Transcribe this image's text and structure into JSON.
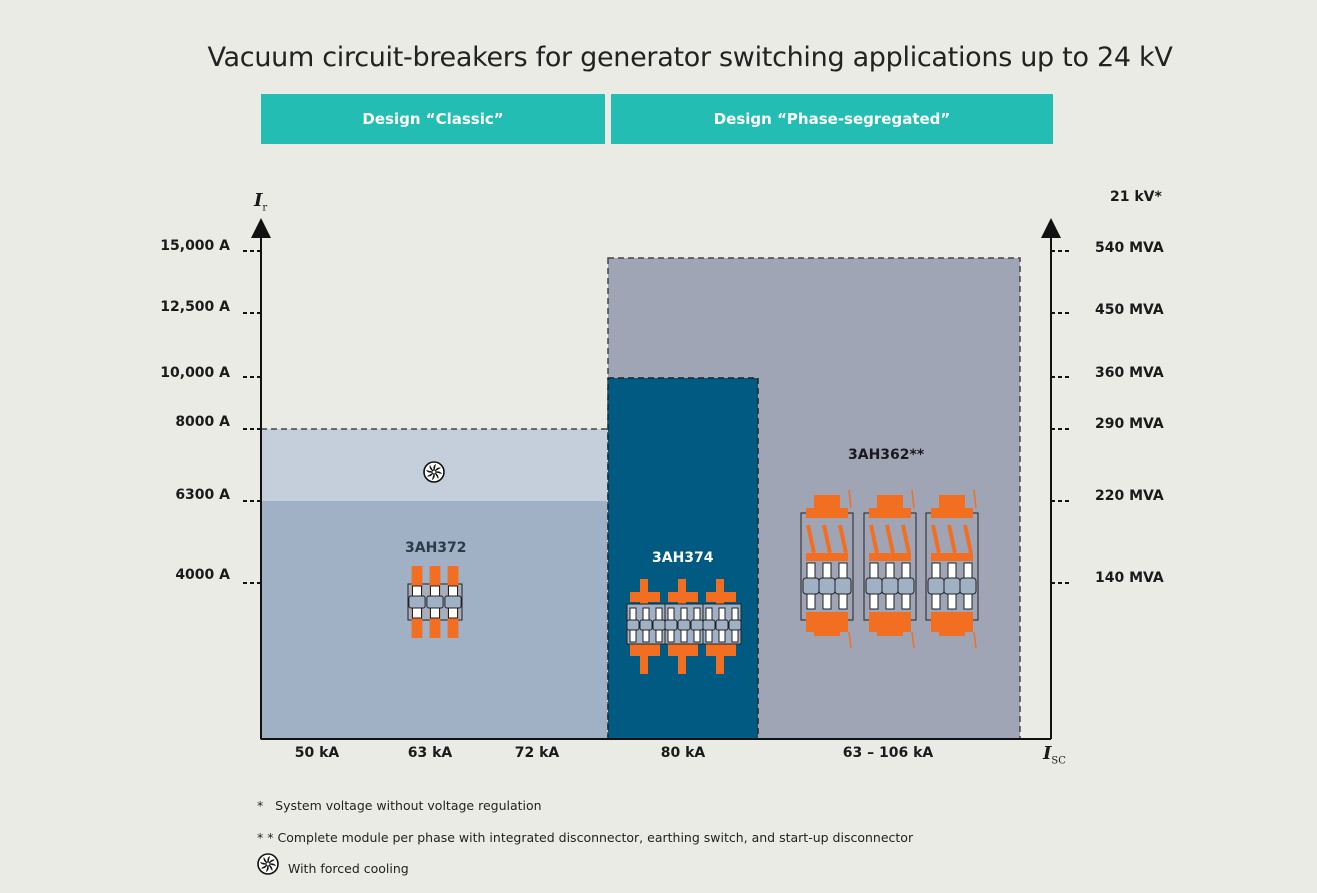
{
  "title": "Vacuum circuit-breakers for generator switching applications up to 24 kV",
  "headers": [
    {
      "label": "Design “Classic”"
    },
    {
      "label": "Design “Phase-segregated”"
    }
  ],
  "y_axis": {
    "label_main": "I",
    "label_sub": "r",
    "ticks": [
      "15,000 A",
      "12,500 A",
      "10,000 A",
      "8000 A",
      "6300 A",
      "4000 A"
    ]
  },
  "y2_axis": {
    "header": "21 kV*",
    "ticks": [
      "540 MVA",
      "450 MVA",
      "360 MVA",
      "290 MVA",
      "220 MVA",
      "140 MVA"
    ]
  },
  "x_axis": {
    "label_main": "I",
    "label_sub": "SC",
    "ticks": [
      "50 kA",
      "63 kA",
      "72 kA",
      "80 kA",
      "63 – 106 kA"
    ]
  },
  "products": [
    {
      "name": "3AH372",
      "max_current": "6300 A",
      "forced_cooling_max_current": "8000 A",
      "breaking_current": "50 kA / 63 kA / 72 kA",
      "color": "#a0b0c5",
      "cooling_color": "#c5cedb"
    },
    {
      "name": "3AH374",
      "max_current": "10,000 A",
      "breaking_current": "80 kA",
      "color": "#005a82"
    },
    {
      "name": "3AH362**",
      "max_current": "15,000 A",
      "breaking_current": "63 – 106 kA",
      "color": "#a0a5b5"
    }
  ],
  "icons": {
    "fan": "fan-icon",
    "breaker": "circuit-breaker-icon",
    "accent": "#f26f21"
  },
  "notes": [
    {
      "marker": "*",
      "text": "System voltage without voltage regulation"
    },
    {
      "marker": "* *",
      "text": "Complete module per phase with integrated disconnector, earthing switch, and start-up disconnector"
    },
    {
      "marker": "fan-icon",
      "text": "With forced cooling"
    }
  ]
}
